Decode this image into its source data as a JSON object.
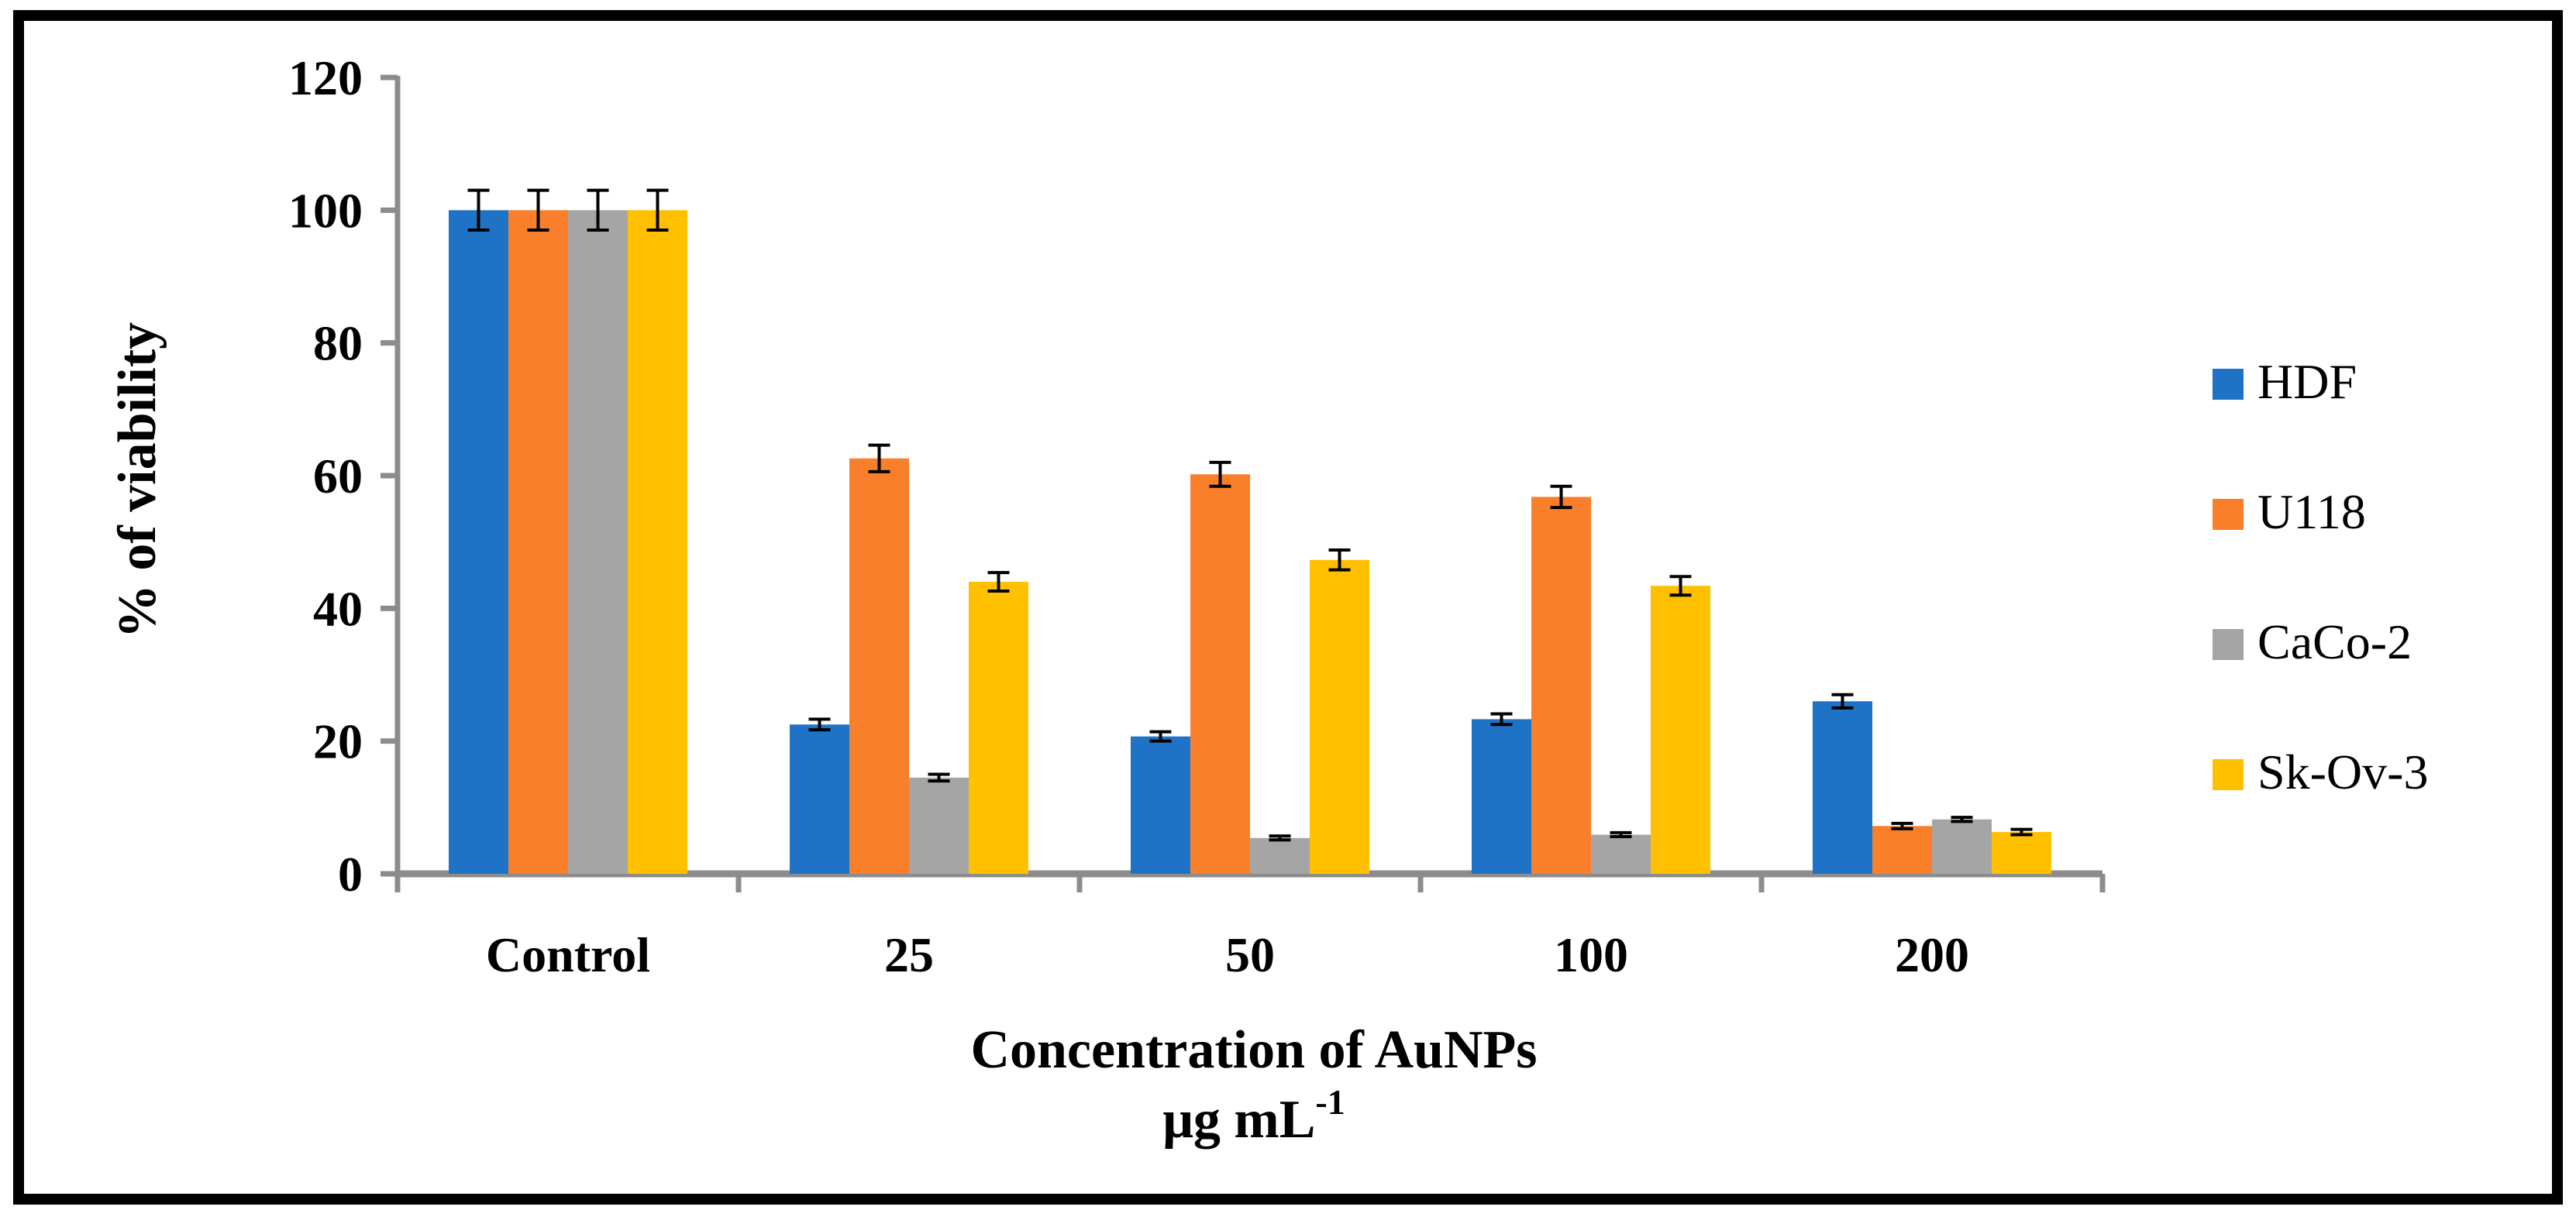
{
  "chart_data": {
    "type": "bar",
    "title": "",
    "categories": [
      "Control",
      "25",
      "50",
      "100",
      "200"
    ],
    "series": [
      {
        "name": "HDF",
        "color": "#1F73C6",
        "values": [
          100,
          22.5,
          20.7,
          23.3,
          26.0
        ],
        "errors": [
          3.0,
          0.8,
          0.7,
          0.8,
          1.0
        ]
      },
      {
        "name": "U118",
        "color": "#F97F2B",
        "values": [
          100,
          62.6,
          60.2,
          56.8,
          7.2
        ],
        "errors": [
          3.0,
          2.0,
          1.8,
          1.6,
          0.4
        ]
      },
      {
        "name": "CaCo-2",
        "color": "#A5A5A5",
        "values": [
          100,
          14.5,
          5.4,
          5.9,
          8.2
        ],
        "errors": [
          3.0,
          0.5,
          0.3,
          0.3,
          0.3
        ]
      },
      {
        "name": "Sk-Ov-3",
        "color": "#FFC000",
        "values": [
          100,
          44.0,
          47.3,
          43.4,
          6.3
        ],
        "errors": [
          3.0,
          1.4,
          1.5,
          1.4,
          0.4
        ]
      }
    ],
    "xlabel_line1": "Concentration of AuNPs",
    "xlabel_line2": "μg mL",
    "xlabel_sup": "-1",
    "ylabel": "% of viability",
    "ylim": [
      0,
      120
    ],
    "yticks": [
      "0",
      "20",
      "40",
      "60",
      "80",
      "100",
      "120"
    ],
    "grid": false,
    "legend_position": "right"
  }
}
